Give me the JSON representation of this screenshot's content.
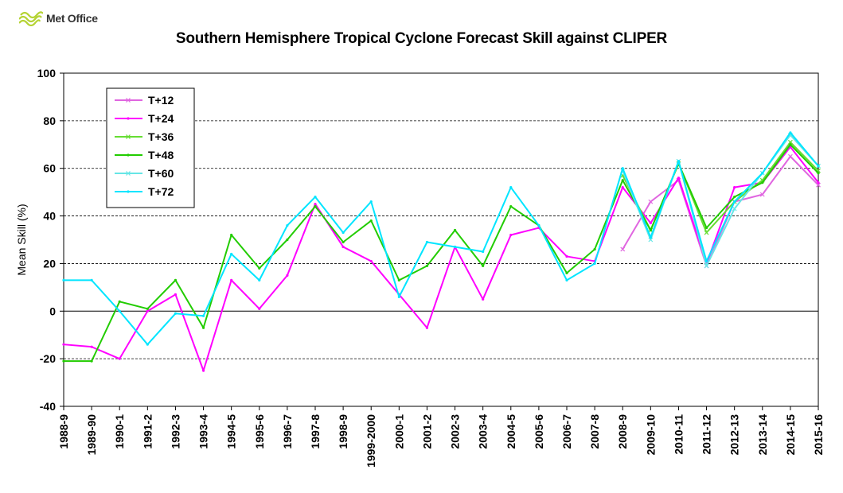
{
  "logo": {
    "text": "Met Office"
  },
  "chart_data": {
    "type": "line",
    "title": "Southern Hemisphere Tropical Cyclone Forecast Skill against CLIPER",
    "xlabel": "",
    "ylabel": "Mean Skill (%)",
    "ylim": [
      -40,
      100
    ],
    "yticks": [
      -40,
      -20,
      0,
      20,
      40,
      60,
      80,
      100
    ],
    "grid": "horizontal dashed",
    "legend_position": "top-left",
    "categories": [
      "1988-9",
      "1989-90",
      "1990-1",
      "1991-2",
      "1992-3",
      "1993-4",
      "1994-5",
      "1995-6",
      "1996-7",
      "1997-8",
      "1998-9",
      "1999-2000",
      "2000-1",
      "2001-2",
      "2002-3",
      "2003-4",
      "2004-5",
      "2005-6",
      "2006-7",
      "2007-8",
      "2008-9",
      "2009-10",
      "2010-11",
      "2011-12",
      "2012-13",
      "2013-14",
      "2014-15",
      "2015-16"
    ],
    "series": [
      {
        "name": "T+12",
        "color": "#e066e0",
        "marker": "x",
        "values": [
          null,
          null,
          null,
          null,
          null,
          null,
          null,
          null,
          null,
          null,
          null,
          null,
          null,
          null,
          null,
          null,
          null,
          null,
          null,
          null,
          26,
          46,
          55,
          19,
          46,
          49,
          65,
          53
        ]
      },
      {
        "name": "T+24",
        "color": "#ff00ff",
        "marker": "dot",
        "values": [
          -14,
          -15,
          -20,
          0,
          7,
          -25,
          13,
          1,
          15,
          45,
          27,
          21,
          7,
          -7,
          27,
          5,
          32,
          35,
          23,
          21,
          52,
          37,
          56,
          20,
          52,
          54,
          69,
          54
        ]
      },
      {
        "name": "T+36",
        "color": "#66dd33",
        "marker": "x",
        "values": [
          null,
          null,
          null,
          null,
          null,
          null,
          null,
          null,
          null,
          null,
          null,
          null,
          null,
          null,
          null,
          null,
          null,
          null,
          null,
          null,
          57,
          34,
          62,
          33,
          46,
          55,
          71,
          59
        ]
      },
      {
        "name": "T+48",
        "color": "#22cc00",
        "marker": "dot",
        "values": [
          -21,
          -21,
          4,
          1,
          13,
          -7,
          32,
          18,
          30,
          44,
          29,
          38,
          13,
          19,
          34,
          19,
          44,
          36,
          16,
          26,
          55,
          34,
          62,
          35,
          48,
          54,
          70,
          58
        ]
      },
      {
        "name": "T+60",
        "color": "#66e6e6",
        "marker": "x",
        "values": [
          null,
          null,
          null,
          null,
          null,
          null,
          null,
          null,
          null,
          null,
          null,
          null,
          null,
          null,
          null,
          null,
          null,
          null,
          null,
          null,
          59,
          30,
          63,
          19,
          43,
          58,
          74,
          61
        ]
      },
      {
        "name": "T+72",
        "color": "#00e5ff",
        "marker": "dot",
        "values": [
          13,
          13,
          0,
          -14,
          -1,
          -2,
          24,
          13,
          36,
          48,
          33,
          46,
          6,
          29,
          27,
          25,
          52,
          36,
          13,
          20,
          60,
          31,
          63,
          21,
          46,
          58,
          75,
          61
        ]
      }
    ]
  }
}
